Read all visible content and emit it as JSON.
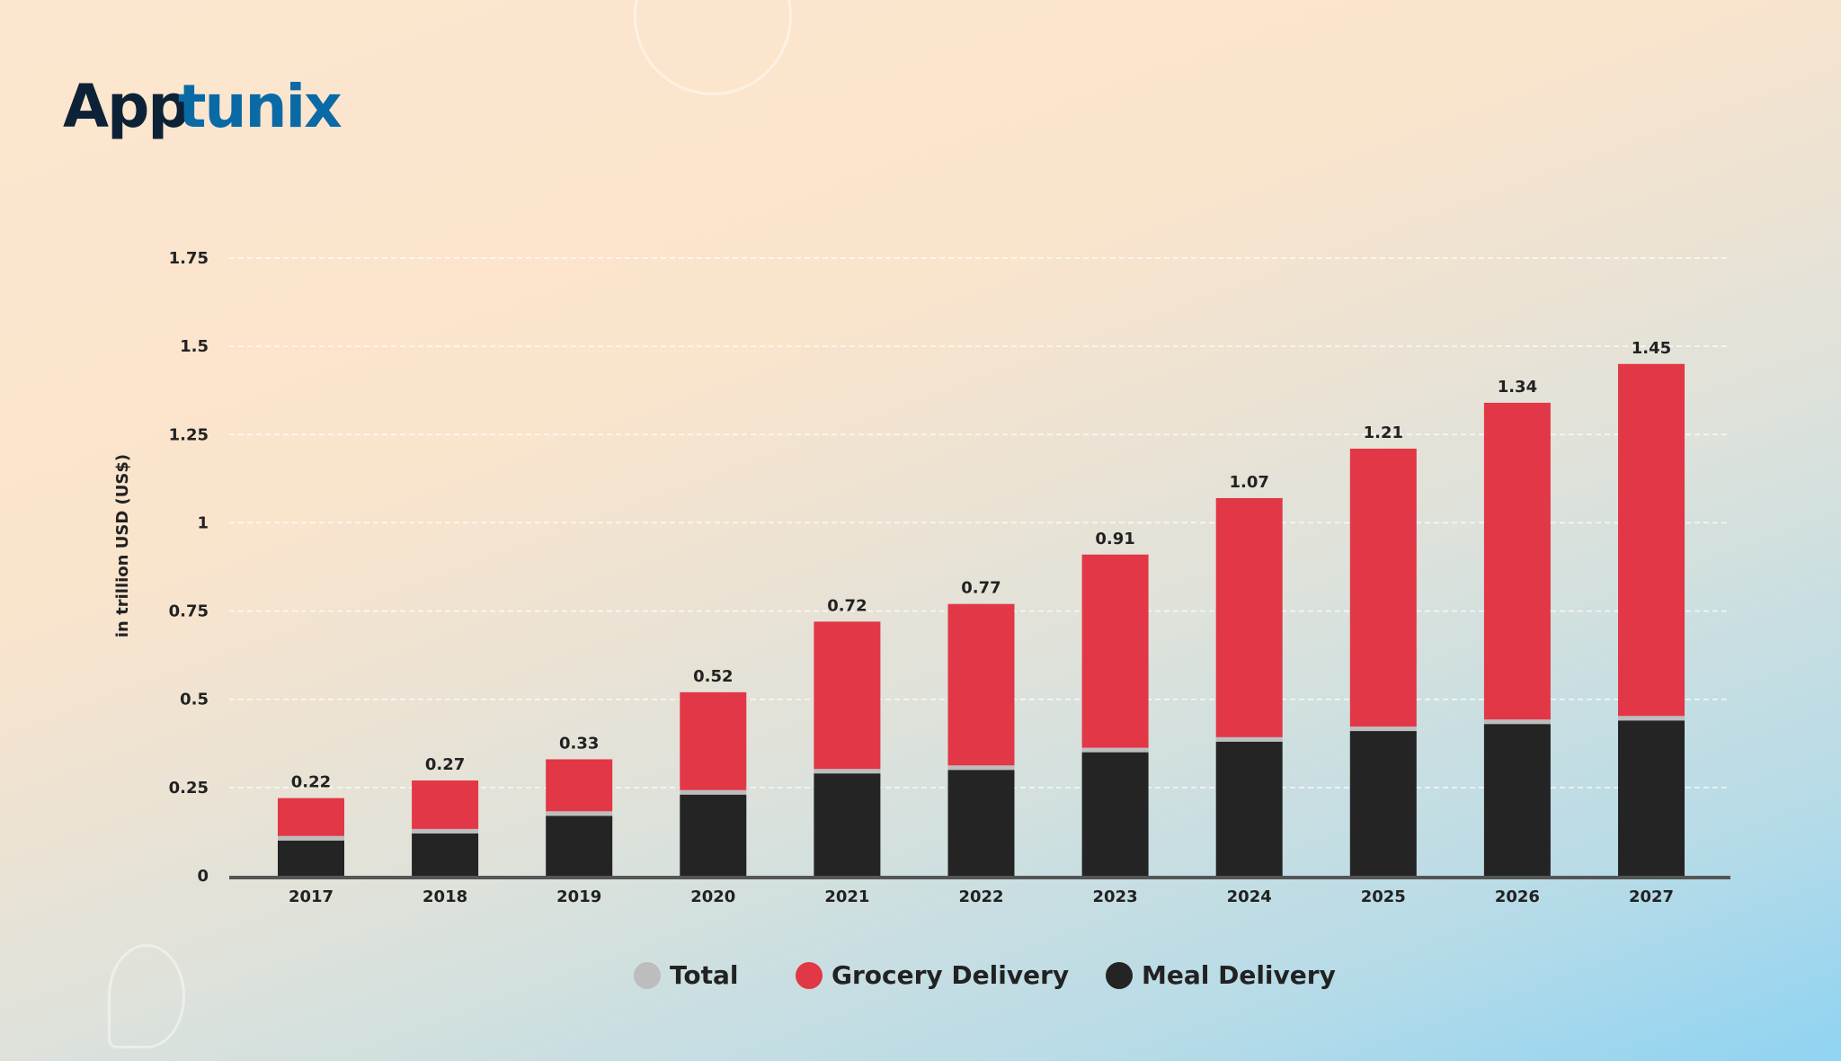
{
  "brand": {
    "logo_part1": "App",
    "logo_part2": "tunix"
  },
  "chart_data": {
    "type": "bar",
    "stacked": true,
    "title": "",
    "xlabel": "",
    "ylabel": "in trillion USD (US$)",
    "ylim": [
      0,
      1.75
    ],
    "yticks": [
      0,
      0.25,
      0.5,
      0.75,
      1,
      1.25,
      1.5,
      1.75
    ],
    "ytick_labels": [
      "0",
      "0.25",
      "0.5",
      "0.75",
      "1",
      "1.25",
      "1.5",
      "1.75"
    ],
    "grid": true,
    "categories": [
      "2017",
      "2018",
      "2019",
      "2020",
      "2021",
      "2022",
      "2023",
      "2024",
      "2025",
      "2026",
      "2027"
    ],
    "series": [
      {
        "name": "Meal Delivery",
        "color": "#242424",
        "values": [
          0.1,
          0.12,
          0.17,
          0.23,
          0.29,
          0.3,
          0.35,
          0.38,
          0.41,
          0.43,
          0.44
        ]
      },
      {
        "name": "Grocery Delivery",
        "color": "#e13746",
        "values": [
          0.12,
          0.15,
          0.16,
          0.29,
          0.43,
          0.47,
          0.56,
          0.69,
          0.8,
          0.91,
          1.01
        ]
      },
      {
        "name": "Total",
        "color": "#bdbdbd",
        "values": [
          0.22,
          0.27,
          0.33,
          0.52,
          0.72,
          0.77,
          0.91,
          1.07,
          1.21,
          1.34,
          1.45
        ]
      }
    ],
    "data_labels": [
      "0.22",
      "0.27",
      "0.33",
      "0.52",
      "0.72",
      "0.77",
      "0.91",
      "1.07",
      "1.21",
      "1.34",
      "1.45"
    ],
    "legend_position": "bottom-center",
    "legend": [
      "Total",
      "Grocery Delivery",
      "Meal Delivery"
    ]
  }
}
